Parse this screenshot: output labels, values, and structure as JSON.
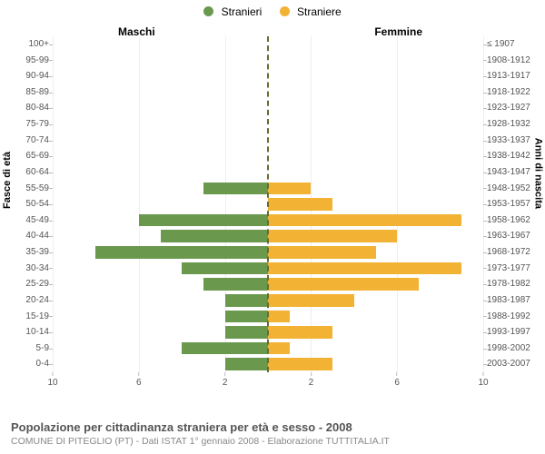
{
  "chart": {
    "type": "population-pyramid",
    "legend": {
      "male": {
        "label": "Stranieri",
        "color": "#6a994e"
      },
      "female": {
        "label": "Straniere",
        "color": "#f2b233"
      }
    },
    "side_titles": {
      "male": "Maschi",
      "female": "Femmine"
    },
    "y_axis_left": "Fasce di età",
    "y_axis_right": "Anni di nascita",
    "x_axis": {
      "max": 10,
      "ticks_left": [
        10,
        6,
        2
      ],
      "ticks_right": [
        2,
        6,
        10
      ]
    },
    "center_line_color": "#6b6b2b",
    "grid_color": "#eeeeee",
    "background_color": "#ffffff",
    "bar_height_ratio": 0.77,
    "age_bands": [
      {
        "age": "100+",
        "birth": "≤ 1907",
        "male": 0,
        "female": 0
      },
      {
        "age": "95-99",
        "birth": "1908-1912",
        "male": 0,
        "female": 0
      },
      {
        "age": "90-94",
        "birth": "1913-1917",
        "male": 0,
        "female": 0
      },
      {
        "age": "85-89",
        "birth": "1918-1922",
        "male": 0,
        "female": 0
      },
      {
        "age": "80-84",
        "birth": "1923-1927",
        "male": 0,
        "female": 0
      },
      {
        "age": "75-79",
        "birth": "1928-1932",
        "male": 0,
        "female": 0
      },
      {
        "age": "70-74",
        "birth": "1933-1937",
        "male": 0,
        "female": 0
      },
      {
        "age": "65-69",
        "birth": "1938-1942",
        "male": 0,
        "female": 0
      },
      {
        "age": "60-64",
        "birth": "1943-1947",
        "male": 0,
        "female": 0
      },
      {
        "age": "55-59",
        "birth": "1948-1952",
        "male": 3.0,
        "female": 2.0
      },
      {
        "age": "50-54",
        "birth": "1953-1957",
        "male": 0,
        "female": 3.0
      },
      {
        "age": "45-49",
        "birth": "1958-1962",
        "male": 6.0,
        "female": 9.0
      },
      {
        "age": "40-44",
        "birth": "1963-1967",
        "male": 5.0,
        "female": 6.0
      },
      {
        "age": "35-39",
        "birth": "1968-1972",
        "male": 8.0,
        "female": 5.0
      },
      {
        "age": "30-34",
        "birth": "1973-1977",
        "male": 4.0,
        "female": 9.0
      },
      {
        "age": "25-29",
        "birth": "1978-1982",
        "male": 3.0,
        "female": 7.0
      },
      {
        "age": "20-24",
        "birth": "1983-1987",
        "male": 2.0,
        "female": 4.0
      },
      {
        "age": "15-19",
        "birth": "1988-1992",
        "male": 2.0,
        "female": 1.0
      },
      {
        "age": "10-14",
        "birth": "1993-1997",
        "male": 2.0,
        "female": 3.0
      },
      {
        "age": "5-9",
        "birth": "1998-2002",
        "male": 4.0,
        "female": 1.0
      },
      {
        "age": "0-4",
        "birth": "2003-2007",
        "male": 2.0,
        "female": 3.0
      }
    ]
  },
  "footer": {
    "title": "Popolazione per cittadinanza straniera per età e sesso - 2008",
    "subtitle": "COMUNE DI PITEGLIO (PT) - Dati ISTAT 1° gennaio 2008 - Elaborazione TUTTITALIA.IT"
  }
}
